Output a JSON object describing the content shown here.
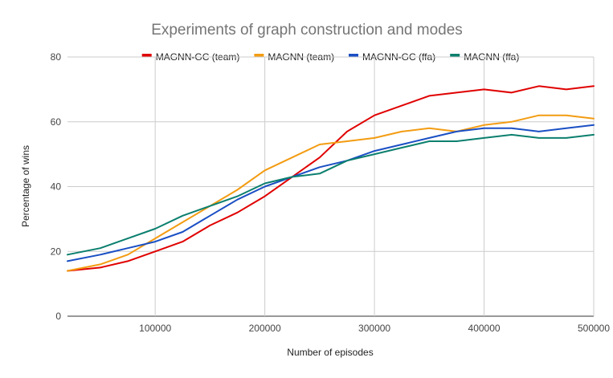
{
  "chart_data": {
    "type": "line",
    "title": "Experiments of graph construction and modes",
    "xlabel": "Number of episodes",
    "ylabel": "Percentage of wins",
    "xlim": [
      20000,
      500000
    ],
    "ylim": [
      0,
      80
    ],
    "x_ticks": [
      100000,
      200000,
      300000,
      400000,
      500000
    ],
    "y_ticks": [
      0,
      20,
      40,
      60,
      80
    ],
    "grid": true,
    "legend_position": "top",
    "x": [
      20000,
      50000,
      75000,
      100000,
      125000,
      150000,
      175000,
      200000,
      225000,
      250000,
      275000,
      300000,
      325000,
      350000,
      375000,
      400000,
      425000,
      450000,
      475000,
      500000
    ],
    "series": [
      {
        "name": "MAGNN-GC (team)",
        "color": "#e00000",
        "values": [
          14,
          15,
          17,
          20,
          23,
          28,
          32,
          37,
          43,
          49,
          57,
          62,
          65,
          68,
          69,
          70,
          69,
          71,
          70,
          71
        ]
      },
      {
        "name": "MAGNN (team)",
        "color": "#f39c12",
        "values": [
          14,
          16,
          19,
          24,
          29,
          34,
          39,
          45,
          49,
          53,
          54,
          55,
          57,
          58,
          57,
          59,
          60,
          62,
          62,
          61
        ]
      },
      {
        "name": "MAGNN-GC (ffa)",
        "color": "#1a4fc4",
        "values": [
          17,
          19,
          21,
          23,
          26,
          31,
          36,
          40,
          43,
          46,
          48,
          51,
          53,
          55,
          57,
          58,
          58,
          57,
          58,
          59
        ]
      },
      {
        "name": "MAGNN (ffa)",
        "color": "#0b7f6e",
        "values": [
          19,
          21,
          24,
          27,
          31,
          34,
          37,
          41,
          43,
          44,
          48,
          50,
          52,
          54,
          54,
          55,
          56,
          55,
          55,
          56
        ]
      }
    ]
  }
}
